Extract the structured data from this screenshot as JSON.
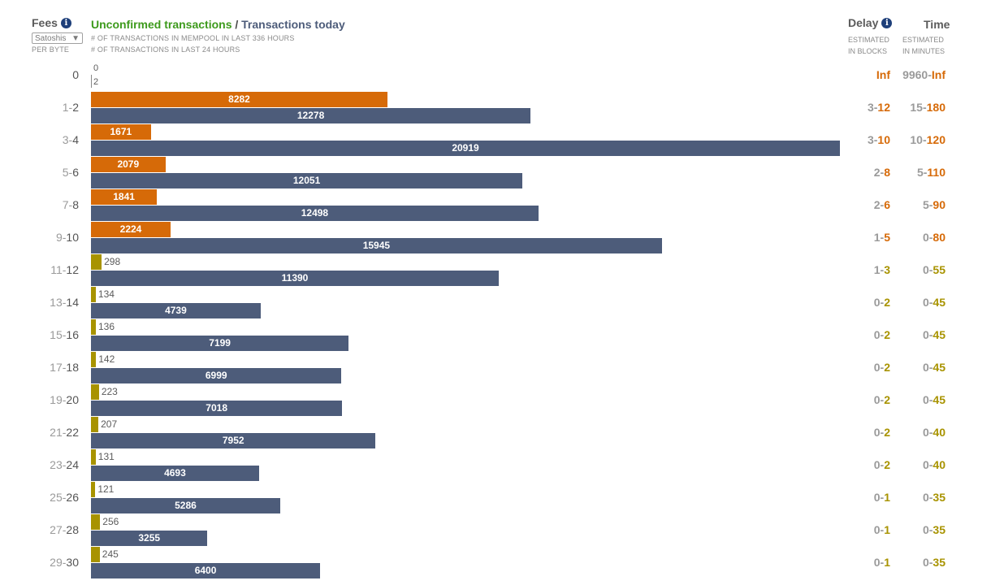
{
  "header": {
    "fees_label": "Fees",
    "unit_selected": "Satoshis",
    "per_byte": "PER BYTE",
    "title_unconfirmed": "Unconfirmed transactions",
    "title_sep": " / ",
    "title_today": "Transactions today",
    "sub_mempool": "# OF TRANSACTIONS IN MEMPOOL IN LAST 336 HOURS",
    "sub_today": "# OF TRANSACTIONS IN LAST 24 HOURS",
    "delay_label": "Delay",
    "delay_sub1": "ESTIMATED",
    "delay_sub2": "IN BLOCKS",
    "time_label": "Time",
    "time_sub1": "ESTIMATED",
    "time_sub2": "IN MINUTES"
  },
  "colors": {
    "unconfirmed_high": "#d66a08",
    "unconfirmed_low": "#a89300",
    "today": "#4d5c7a",
    "title_green": "#3d9a1c",
    "info_icon": "#1e3f7a"
  },
  "icons": {
    "fees_info": "info-icon",
    "delay_info": "info-icon",
    "select_arrow": "chevron-down-icon"
  },
  "chart_data": {
    "type": "bar",
    "orientation": "horizontal",
    "max_value": 20919,
    "rows": [
      {
        "fee_lo": "0",
        "fee_hi": "",
        "unconfirmed": 0,
        "today": 2,
        "delay_lo": "",
        "delay_hi": "Inf",
        "time_lo": "9960",
        "time_hi": "Inf",
        "level": "high"
      },
      {
        "fee_lo": "1",
        "fee_hi": "2",
        "unconfirmed": 8282,
        "today": 12278,
        "delay_lo": "3",
        "delay_hi": "12",
        "time_lo": "15",
        "time_hi": "180",
        "level": "high"
      },
      {
        "fee_lo": "3",
        "fee_hi": "4",
        "unconfirmed": 1671,
        "today": 20919,
        "delay_lo": "3",
        "delay_hi": "10",
        "time_lo": "10",
        "time_hi": "120",
        "level": "high"
      },
      {
        "fee_lo": "5",
        "fee_hi": "6",
        "unconfirmed": 2079,
        "today": 12051,
        "delay_lo": "2",
        "delay_hi": "8",
        "time_lo": "5",
        "time_hi": "110",
        "level": "high"
      },
      {
        "fee_lo": "7",
        "fee_hi": "8",
        "unconfirmed": 1841,
        "today": 12498,
        "delay_lo": "2",
        "delay_hi": "6",
        "time_lo": "5",
        "time_hi": "90",
        "level": "high"
      },
      {
        "fee_lo": "9",
        "fee_hi": "10",
        "unconfirmed": 2224,
        "today": 15945,
        "delay_lo": "1",
        "delay_hi": "5",
        "time_lo": "0",
        "time_hi": "80",
        "level": "high"
      },
      {
        "fee_lo": "11",
        "fee_hi": "12",
        "unconfirmed": 298,
        "today": 11390,
        "delay_lo": "1",
        "delay_hi": "3",
        "time_lo": "0",
        "time_hi": "55",
        "level": "low"
      },
      {
        "fee_lo": "13",
        "fee_hi": "14",
        "unconfirmed": 134,
        "today": 4739,
        "delay_lo": "0",
        "delay_hi": "2",
        "time_lo": "0",
        "time_hi": "45",
        "level": "low"
      },
      {
        "fee_lo": "15",
        "fee_hi": "16",
        "unconfirmed": 136,
        "today": 7199,
        "delay_lo": "0",
        "delay_hi": "2",
        "time_lo": "0",
        "time_hi": "45",
        "level": "low"
      },
      {
        "fee_lo": "17",
        "fee_hi": "18",
        "unconfirmed": 142,
        "today": 6999,
        "delay_lo": "0",
        "delay_hi": "2",
        "time_lo": "0",
        "time_hi": "45",
        "level": "low"
      },
      {
        "fee_lo": "19",
        "fee_hi": "20",
        "unconfirmed": 223,
        "today": 7018,
        "delay_lo": "0",
        "delay_hi": "2",
        "time_lo": "0",
        "time_hi": "45",
        "level": "low"
      },
      {
        "fee_lo": "21",
        "fee_hi": "22",
        "unconfirmed": 207,
        "today": 7952,
        "delay_lo": "0",
        "delay_hi": "2",
        "time_lo": "0",
        "time_hi": "40",
        "level": "low"
      },
      {
        "fee_lo": "23",
        "fee_hi": "24",
        "unconfirmed": 131,
        "today": 4693,
        "delay_lo": "0",
        "delay_hi": "2",
        "time_lo": "0",
        "time_hi": "40",
        "level": "low"
      },
      {
        "fee_lo": "25",
        "fee_hi": "26",
        "unconfirmed": 121,
        "today": 5286,
        "delay_lo": "0",
        "delay_hi": "1",
        "time_lo": "0",
        "time_hi": "35",
        "level": "low"
      },
      {
        "fee_lo": "27",
        "fee_hi": "28",
        "unconfirmed": 256,
        "today": 3255,
        "delay_lo": "0",
        "delay_hi": "1",
        "time_lo": "0",
        "time_hi": "35",
        "level": "low"
      },
      {
        "fee_lo": "29",
        "fee_hi": "30",
        "unconfirmed": 245,
        "today": 6400,
        "delay_lo": "0",
        "delay_hi": "1",
        "time_lo": "0",
        "time_hi": "35",
        "level": "low"
      }
    ]
  }
}
